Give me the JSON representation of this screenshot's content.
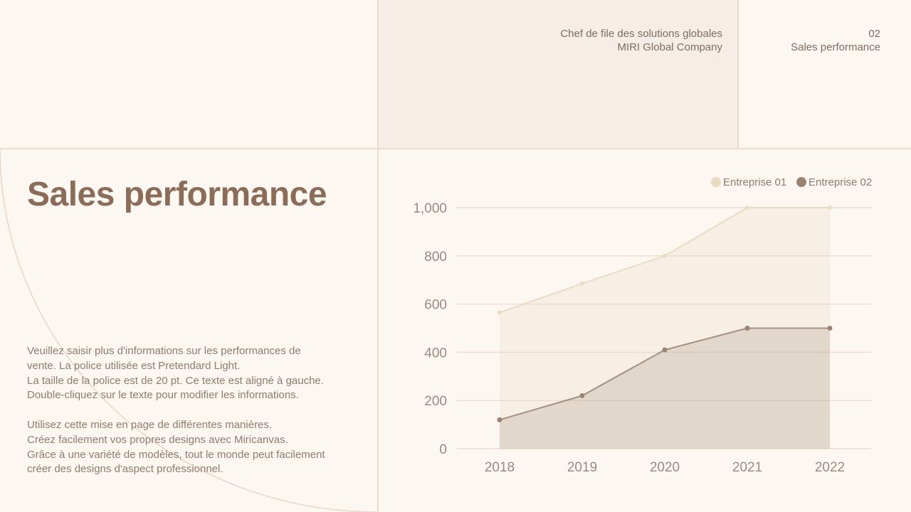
{
  "header": {
    "company_line1": "Chef de file des solutions globales",
    "company_line2": "MIRI Global Company",
    "page_number": "02",
    "section": "Sales performance"
  },
  "main": {
    "title": "Sales performance",
    "paragraph1": [
      "Veuillez saisir plus d'informations sur les performances de",
      "vente. La police utilisée est Pretendard Light.",
      "La taille de la police est de 20 pt. Ce texte est aligné à gauche.",
      "Double-cliquez sur le texte pour modifier les informations."
    ],
    "paragraph2": [
      "Utilisez cette mise en page de différentes manières.",
      "Créez facilement vos propres designs avec Miricanvas.",
      "Grâce à une variété de modèles, tout le monde peut facilement",
      "créer des designs d'aspect professionnel."
    ]
  },
  "chart_data": {
    "type": "area",
    "x": [
      "2018",
      "2019",
      "2020",
      "2021",
      "2022"
    ],
    "series": [
      {
        "name": "Entreprise 01",
        "values": [
          565,
          685,
          800,
          1000,
          1000
        ],
        "color": "#eadcc2"
      },
      {
        "name": "Entreprise 02",
        "values": [
          120,
          220,
          410,
          500,
          500
        ],
        "color": "#9b8474"
      }
    ],
    "y_ticks": [
      "0",
      "200",
      "400",
      "600",
      "800",
      "1,000"
    ],
    "ylim": [
      0,
      1000
    ],
    "grid": true,
    "legend_position": "top-right"
  }
}
